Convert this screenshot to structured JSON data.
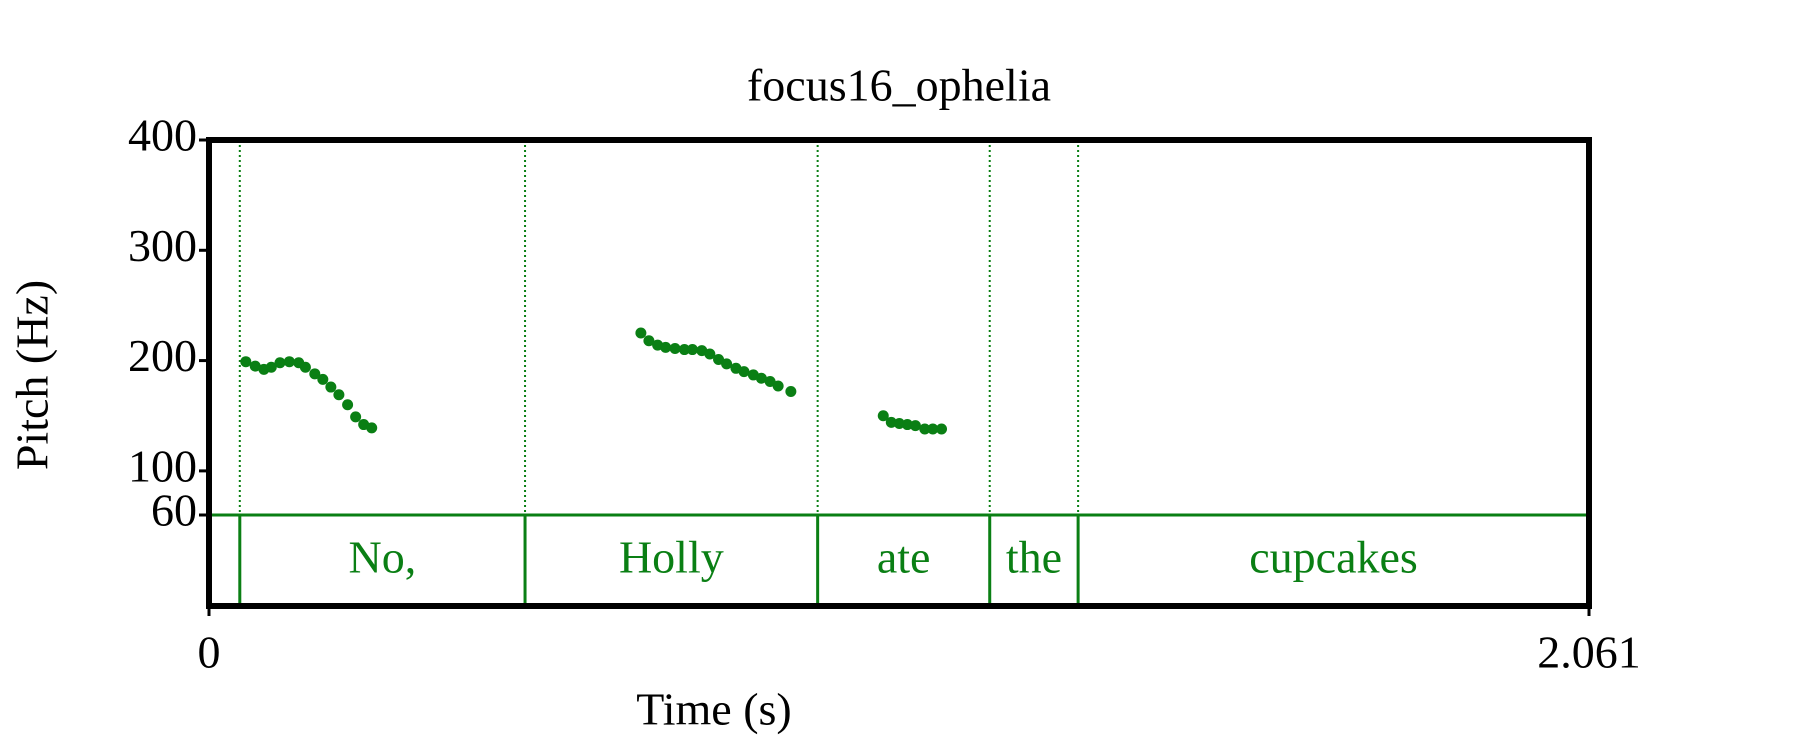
{
  "chart_data": {
    "type": "scatter",
    "title": "focus16_ophelia",
    "x_label": "Time (s)",
    "y_label": "Pitch (Hz)",
    "color": "#0a7f14",
    "xlim": [
      0,
      2.061
    ],
    "xticks": [
      0,
      2.061
    ],
    "ylim": [
      60,
      400
    ],
    "yticks": [
      60,
      100,
      200,
      300,
      400
    ],
    "x": [
      0.055,
      0.069,
      0.082,
      0.093,
      0.106,
      0.12,
      0.134,
      0.144,
      0.158,
      0.17,
      0.182,
      0.194,
      0.207,
      0.219,
      0.231,
      0.243,
      0.645,
      0.657,
      0.67,
      0.682,
      0.696,
      0.71,
      0.722,
      0.736,
      0.748,
      0.761,
      0.773,
      0.787,
      0.799,
      0.813,
      0.825,
      0.838,
      0.85,
      0.869,
      1.007,
      1.019,
      1.031,
      1.043,
      1.055,
      1.069,
      1.081,
      1.094
    ],
    "values": [
      199,
      195,
      192,
      194,
      198,
      199,
      198,
      194,
      188,
      183,
      176,
      169,
      160,
      149,
      142,
      139,
      225,
      218,
      214,
      212,
      211,
      210,
      210,
      209,
      206,
      201,
      197,
      193,
      190,
      187,
      184,
      181,
      177,
      172,
      150,
      144,
      143,
      142,
      141,
      138,
      138,
      138
    ],
    "tier": [
      {
        "label": "No,",
        "start": 0.046,
        "end": 0.472
      },
      {
        "label": "Holly",
        "start": 0.472,
        "end": 0.909
      },
      {
        "label": "ate",
        "start": 0.909,
        "end": 1.166
      },
      {
        "label": "the",
        "start": 1.166,
        "end": 1.298
      },
      {
        "label": "cupcakes",
        "start": 1.298,
        "end": 2.061
      }
    ]
  }
}
